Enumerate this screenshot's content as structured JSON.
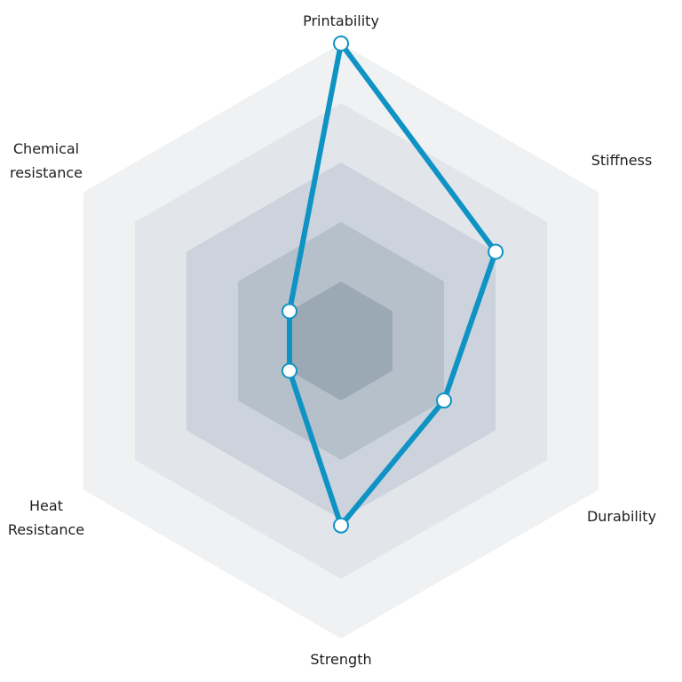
{
  "chart_data": {
    "type": "radar",
    "title": "",
    "axes": [
      {
        "label": "Printability"
      },
      {
        "label": "Stiffness"
      },
      {
        "label": "Durability"
      },
      {
        "label": "Strength"
      },
      {
        "label": "Heat Resistance"
      },
      {
        "label": "Chemical resistance"
      }
    ],
    "rings": 5,
    "range": [
      0,
      5
    ],
    "series": [
      {
        "values": [
          5,
          3,
          2,
          3.1,
          1,
          1
        ],
        "color": "#0f93c4"
      }
    ],
    "ring_colors": [
      "#f0f1f3",
      "#e2e6eb",
      "#cdd3dc",
      "#b6c0ca",
      "#9ba9b4"
    ],
    "grid": false,
    "legend": "none"
  }
}
